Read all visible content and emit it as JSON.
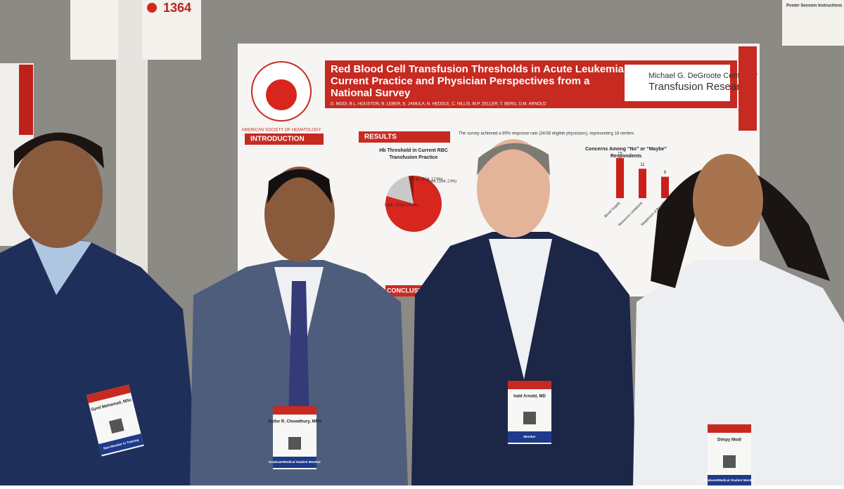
{
  "sign": {
    "number": "1364",
    "instructions_title": "Poster Session Instructions"
  },
  "poster": {
    "title_lines": [
      "Red Blood Cell Transfusion Thresholds in Acute Leukemia:",
      "Current Practice and Physician Perspectives from a",
      "National Survey"
    ],
    "authors": "D. MODI, B L. HOUSTON, B. LEBER, E. JAMULA, N. HEDDLE, C. HILLIS, M.P. ZELLER, T. BERG, D.M. ARNOLD",
    "logo_lines": [
      "Michael G. DeGroote Centre for",
      "Transfusion Research"
    ],
    "society": "AMERICAN SOCIETY OF HEMATOLOGY",
    "sections": {
      "introduction": "INTRODUCTION",
      "results": "RESULTS",
      "conclusion": "CONCLUSION"
    },
    "survey_note": "The survey achieved a 89% response rate (34/38 eligible physicians), representing 18 centers",
    "pie": {
      "title_lines": [
        "Hb Threshold in Current RBC",
        "Transfusion Practice"
      ],
      "slices": [
        {
          "label": "7 g/dL, 27/34 (79.4%)",
          "value": 79.4,
          "color": "#d7261e"
        },
        {
          "label": "8 g/L (6/34, 17.6%)",
          "value": 17.6,
          "color": "#c9c9c9"
        },
        {
          "label": "9 g/dL (1/34, 2.9%)",
          "value": 2.9,
          "color": "#8c1a14"
        }
      ]
    },
    "bars": {
      "title_lines": [
        "Concerns Among “No” or “Maybe”",
        "Respondents"
      ],
      "values": [
        15,
        11,
        8
      ],
      "categories": [
        "Blood Supply",
        "Resource Limitations",
        "Skepticism of Benefit"
      ],
      "color": "#cc1f1a"
    }
  },
  "badges": [
    {
      "name": "Syed Mahamad, MSc",
      "ribbon": "Non-Member In Training"
    },
    {
      "name": "Saifur R. Chowdhury, MPH",
      "ribbon": "Graduate/Medical Student Member"
    },
    {
      "name": "hald Arnold, MD",
      "ribbon": "Member"
    },
    {
      "name": "Dimpy Modi",
      "ribbon": "Graduate/Medical Student Member"
    }
  ]
}
